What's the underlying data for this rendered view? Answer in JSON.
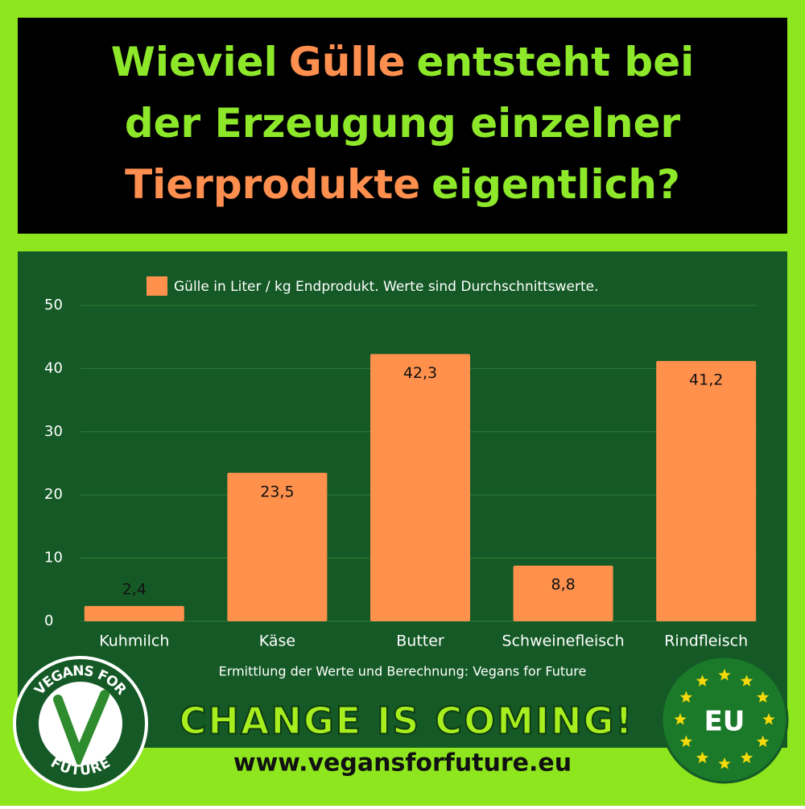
{
  "chart_data": {
    "type": "bar",
    "title_lines": [
      [
        {
          "text": "Wieviel",
          "color": "#8ee82a"
        },
        {
          "text": "Gülle",
          "color": "#ff8f4f"
        },
        {
          "text": "entsteht bei",
          "color": "#8ee82a"
        }
      ],
      [
        {
          "text": "der Erzeugung einzelner",
          "color": "#8ee82a"
        }
      ],
      [
        {
          "text": "Tierprodukte",
          "color": "#ff8f4f"
        },
        {
          "text": "eigentlich?",
          "color": "#8ee82a"
        }
      ]
    ],
    "categories": [
      "Kuhmilch",
      "Käse",
      "Butter",
      "Schweinefleisch",
      "Rindfleisch"
    ],
    "series": [
      {
        "name": "Gülle in Liter / kg Endprodukt. Werte sind Durchschnittswerte.",
        "color": "#ff914d",
        "values": [
          2.4,
          23.5,
          42.3,
          8.8,
          41.2
        ],
        "value_labels": [
          "2,4",
          "23,5",
          "42,3",
          "8,8",
          "41,2"
        ]
      }
    ],
    "ylim": [
      0,
      50
    ],
    "yticks": [
      0,
      10,
      20,
      30,
      40,
      50
    ],
    "grid": true,
    "source": "Ermittlung der Werte und Berechnung: Vegans for Future",
    "slogan": "CHANGE IS COMING!",
    "url": "www.vegansforfuture.eu",
    "logo_top": "VEGANS FOR",
    "logo_bottom": "FUTURE",
    "badge": "EU"
  }
}
